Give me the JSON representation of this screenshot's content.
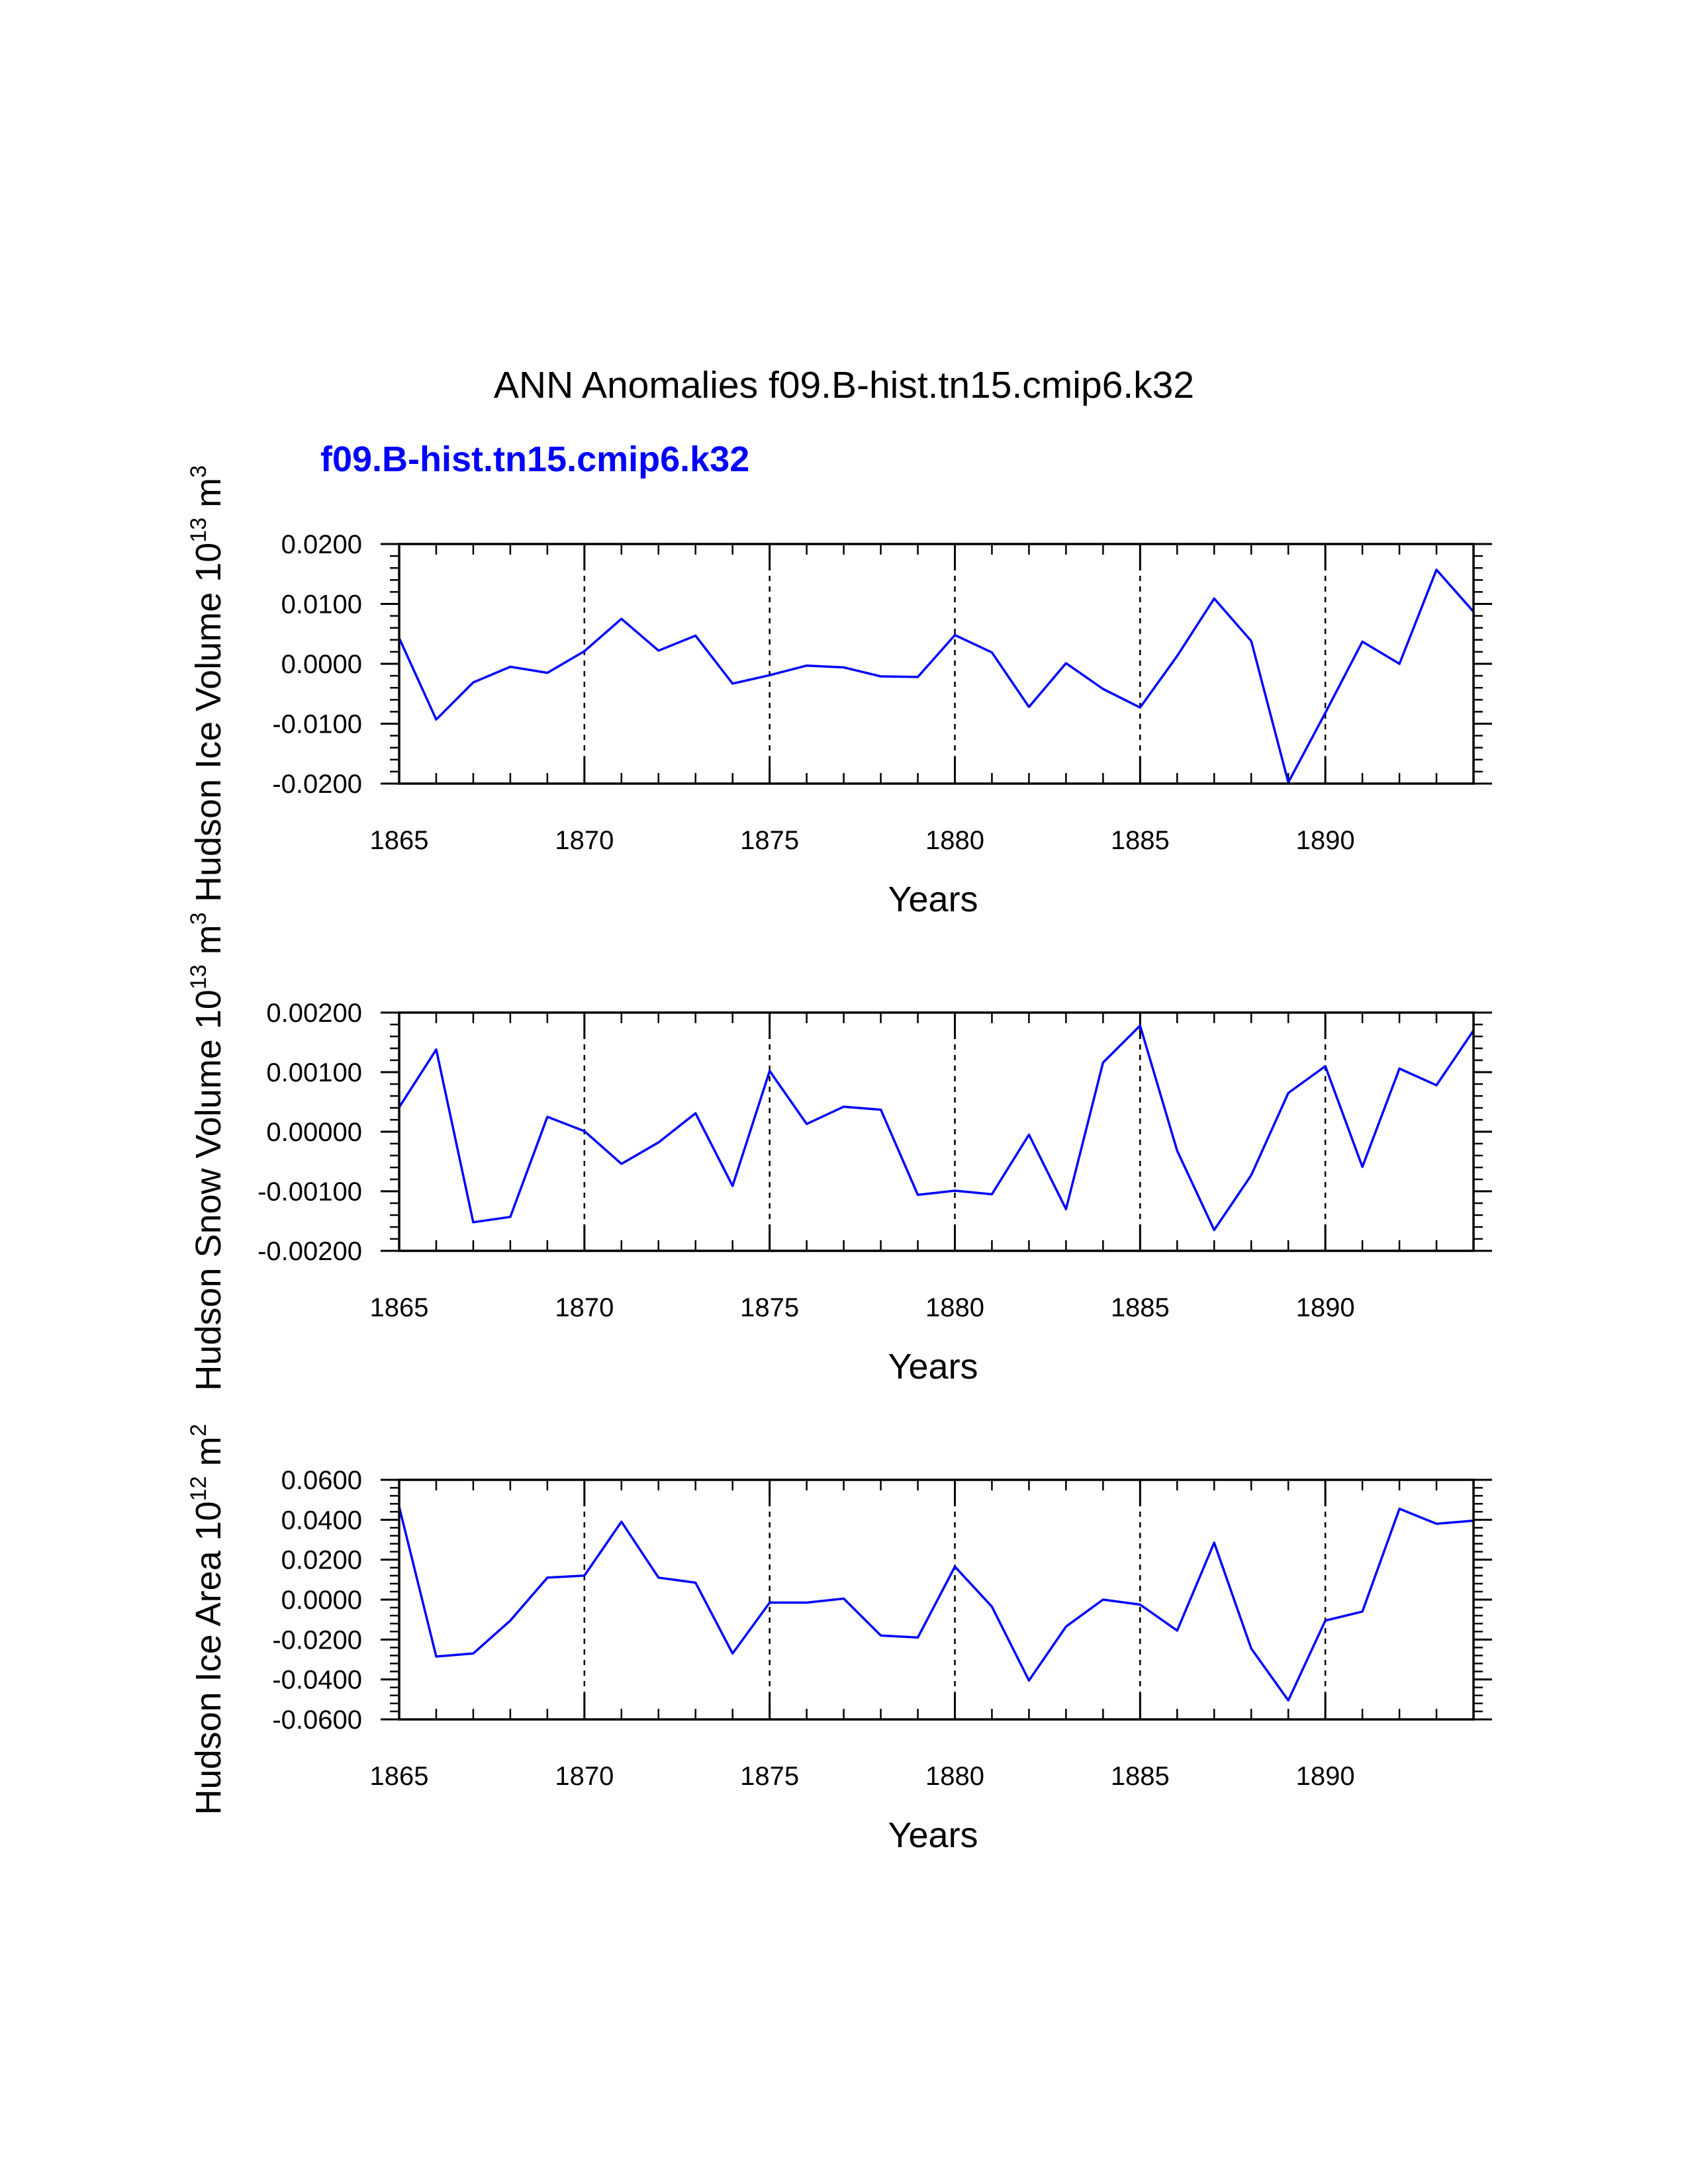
{
  "title": "ANN Anomalies f09.B-hist.tn15.cmip6.k32",
  "subtitle": "f09.B-hist.tn15.cmip6.k32",
  "colors": {
    "series": "#0000ff",
    "subtitle": "#0000ff",
    "axes": "#000000"
  },
  "chart_data": [
    {
      "type": "line",
      "ylabel_main": "Hudson Ice Volume 10",
      "ylabel_exp": "13",
      "ylabel_unit": " m",
      "ylabel_unit_exp": "3",
      "xlabel": "Years",
      "xlim": [
        1865,
        1894
      ],
      "ylim": [
        -0.02,
        0.02
      ],
      "xticks": [
        1865,
        1870,
        1875,
        1880,
        1885,
        1890
      ],
      "xtick_labels": [
        "1865",
        "1870",
        "1875",
        "1880",
        "1885",
        "1890"
      ],
      "yticks": [
        -0.02,
        -0.01,
        0.0,
        0.01,
        0.02
      ],
      "ytick_labels": [
        "-0.0200",
        "-0.0100",
        "0.0000",
        "0.0100",
        "0.0200"
      ],
      "grid_x": [
        1870,
        1875,
        1880,
        1885,
        1890
      ],
      "x": [
        1865,
        1866,
        1867,
        1868,
        1869,
        1870,
        1871,
        1872,
        1873,
        1874,
        1875,
        1876,
        1877,
        1878,
        1879,
        1880,
        1881,
        1882,
        1883,
        1884,
        1885,
        1886,
        1887,
        1888,
        1889,
        1890,
        1891,
        1892,
        1893,
        1894
      ],
      "values": [
        0.0043,
        -0.0093,
        -0.0031,
        -0.0005,
        -0.0015,
        0.0021,
        0.0075,
        0.0022,
        0.0047,
        -0.0033,
        -0.0019,
        -0.0003,
        -0.0006,
        -0.0021,
        -0.0022,
        0.0048,
        0.0019,
        -0.0072,
        0.0001,
        -0.0042,
        -0.0073,
        0.0013,
        0.0109,
        0.0038,
        -0.0198,
        -0.0082,
        0.0037,
        0.0,
        0.0157,
        0.0087
      ]
    },
    {
      "type": "line",
      "ylabel_main": "Hudson Snow Volume 10",
      "ylabel_exp": "13",
      "ylabel_unit": " m",
      "ylabel_unit_exp": "3",
      "xlabel": "Years",
      "xlim": [
        1865,
        1894
      ],
      "ylim": [
        -0.002,
        0.002
      ],
      "xticks": [
        1865,
        1870,
        1875,
        1880,
        1885,
        1890
      ],
      "xtick_labels": [
        "1865",
        "1870",
        "1875",
        "1880",
        "1885",
        "1890"
      ],
      "yticks": [
        -0.002,
        -0.001,
        0.0,
        0.001,
        0.002
      ],
      "ytick_labels": [
        "-0.00200",
        "-0.00100",
        "0.00000",
        "0.00100",
        "0.00200"
      ],
      "grid_x": [
        1870,
        1875,
        1880,
        1885,
        1890
      ],
      "x": [
        1865,
        1866,
        1867,
        1868,
        1869,
        1870,
        1871,
        1872,
        1873,
        1874,
        1875,
        1876,
        1877,
        1878,
        1879,
        1880,
        1881,
        1882,
        1883,
        1884,
        1885,
        1886,
        1887,
        1888,
        1889,
        1890,
        1891,
        1892,
        1893,
        1894
      ],
      "values": [
        0.00041,
        0.00138,
        -0.00152,
        -0.00143,
        0.00025,
        1e-05,
        -0.00054,
        -0.00018,
        0.00031,
        -0.00091,
        0.00102,
        0.00013,
        0.00042,
        0.00037,
        -0.00106,
        -0.00099,
        -0.00105,
        -5e-05,
        -0.0013,
        0.00116,
        0.00178,
        -0.00032,
        -0.00165,
        -0.00073,
        0.00065,
        0.0011,
        -0.00059,
        0.00106,
        0.00078,
        0.0017
      ]
    },
    {
      "type": "line",
      "ylabel_main": "Hudson Ice Area 10",
      "ylabel_exp": "12",
      "ylabel_unit": " m",
      "ylabel_unit_exp": "2",
      "xlabel": "Years",
      "xlim": [
        1865,
        1894
      ],
      "ylim": [
        -0.06,
        0.06
      ],
      "xticks": [
        1865,
        1870,
        1875,
        1880,
        1885,
        1890
      ],
      "xtick_labels": [
        "1865",
        "1870",
        "1875",
        "1880",
        "1885",
        "1890"
      ],
      "yticks": [
        -0.06,
        -0.04,
        -0.02,
        0.0,
        0.02,
        0.04,
        0.06
      ],
      "ytick_labels": [
        "-0.0600",
        "-0.0400",
        "-0.0200",
        "0.0000",
        "0.0200",
        "0.0400",
        "0.0600"
      ],
      "grid_x": [
        1870,
        1875,
        1880,
        1885,
        1890
      ],
      "x": [
        1865,
        1866,
        1867,
        1868,
        1869,
        1870,
        1871,
        1872,
        1873,
        1874,
        1875,
        1876,
        1877,
        1878,
        1879,
        1880,
        1881,
        1882,
        1883,
        1884,
        1885,
        1886,
        1887,
        1888,
        1889,
        1890,
        1891,
        1892,
        1893,
        1894
      ],
      "values": [
        0.0465,
        -0.0285,
        -0.027,
        -0.0105,
        0.011,
        0.012,
        0.039,
        0.011,
        0.0085,
        -0.027,
        -0.0015,
        -0.0015,
        0.0005,
        -0.018,
        -0.019,
        0.0165,
        -0.0035,
        -0.0405,
        -0.0135,
        0.0,
        -0.0025,
        -0.0155,
        0.0285,
        -0.0245,
        -0.0505,
        -0.0105,
        -0.006,
        0.0455,
        0.038,
        0.0395
      ]
    }
  ]
}
